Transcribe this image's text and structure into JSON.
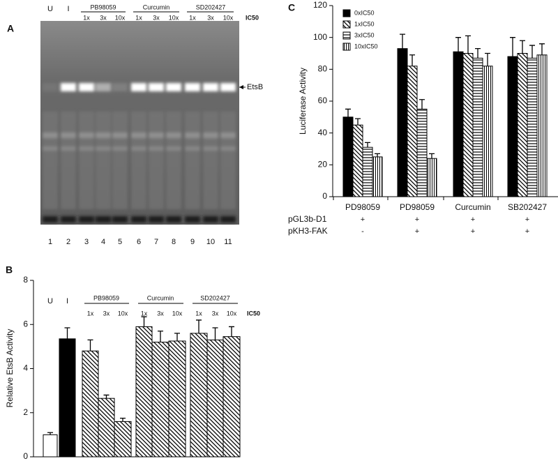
{
  "gel": {
    "panel_label": "A",
    "lane_labels": [
      "U",
      "I",
      "1x",
      "3x",
      "10x",
      "1x",
      "3x",
      "10x",
      "1x",
      "3x",
      "10x"
    ],
    "group_labels": [
      null,
      null,
      null,
      "PB98059",
      null,
      null,
      "Curcumin",
      null,
      null,
      "SD202427",
      null
    ],
    "unit": "IC50",
    "lane_numbers": [
      1,
      2,
      3,
      4,
      5,
      6,
      7,
      8,
      9,
      10,
      11
    ],
    "band_label": "EtsB"
  },
  "chart_data": [
    {
      "type": "bar",
      "panel_label": "B",
      "ylabel": "Relative EtsB Activity",
      "ylim": [
        0,
        8
      ],
      "yticks": [
        0,
        2,
        4,
        6,
        8
      ],
      "categories": [
        "U",
        "I",
        "1x",
        "3x",
        "10x",
        "1x",
        "3x",
        "10x",
        "1x",
        "3x",
        "10x"
      ],
      "group_labels": [
        null,
        null,
        null,
        "PB98059",
        null,
        null,
        "Curcumin",
        null,
        null,
        "SD202427",
        null
      ],
      "unit": "IC50",
      "values": [
        1.0,
        5.35,
        4.8,
        2.65,
        1.6,
        5.9,
        5.2,
        5.25,
        5.6,
        5.3,
        5.45
      ],
      "errors": [
        0.1,
        0.5,
        0.5,
        0.15,
        0.15,
        0.45,
        0.5,
        0.35,
        0.6,
        0.55,
        0.45
      ],
      "fills": [
        "white",
        "black",
        "diagonal",
        "diagonal",
        "diagonal",
        "diagonal",
        "diagonal",
        "diagonal",
        "diagonal",
        "diagonal",
        "diagonal"
      ]
    },
    {
      "type": "bar",
      "panel_label": "C",
      "ylabel": "Luciferase Activity",
      "ylim": [
        0,
        120
      ],
      "yticks": [
        0,
        20,
        40,
        60,
        80,
        100,
        120
      ],
      "categories": [
        "PD98059",
        "PD98059",
        "Curcumin",
        "SB202427"
      ],
      "legend": "upper left",
      "series": [
        {
          "name": "0xIC50",
          "fill": "black",
          "values": [
            50,
            93,
            91,
            88
          ],
          "errors": [
            5,
            9,
            9,
            12
          ]
        },
        {
          "name": "1xIC50",
          "fill": "diagonal",
          "values": [
            45,
            82,
            90,
            90
          ],
          "errors": [
            4,
            7,
            11,
            8
          ]
        },
        {
          "name": "3xIC50",
          "fill": "horizontal",
          "values": [
            31,
            55,
            87,
            87
          ],
          "errors": [
            3,
            6,
            6,
            8
          ]
        },
        {
          "name": "10xIC50",
          "fill": "vertical",
          "values": [
            25,
            24,
            82,
            89
          ],
          "errors": [
            2,
            3,
            8,
            7
          ]
        }
      ],
      "rows": [
        {
          "name": "pGL3b-D1",
          "values": [
            "+",
            "+",
            "+",
            "+"
          ]
        },
        {
          "name": "pKH3-FAK",
          "values": [
            "-",
            "+",
            "+",
            "+"
          ]
        }
      ]
    }
  ]
}
